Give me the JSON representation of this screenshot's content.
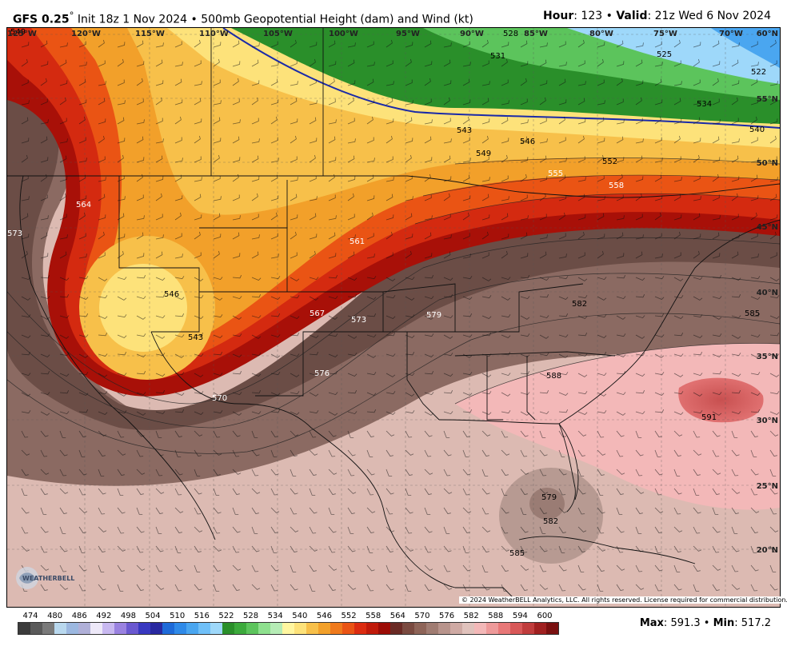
{
  "header": {
    "model": "GFS 0.25",
    "degree": "°",
    "init": "Init 18z 1 Nov 2024",
    "sep": "•",
    "product": "500mb Geopotential Height (dam) and Wind (kt)",
    "hour_label": "Hour",
    "hour_value": "123",
    "valid_label": "Valid",
    "valid_value": "21z Wed 6 Nov 2024"
  },
  "map": {
    "lon_labels": [
      "125°W",
      "120°W",
      "115°W",
      "110°W",
      "105°W",
      "100°W",
      "95°W",
      "90°W",
      "85°W",
      "80°W",
      "75°W",
      "70°W"
    ],
    "lat_labels": [
      "60°N",
      "55°N",
      "50°N",
      "45°N",
      "40°N",
      "35°N",
      "30°N",
      "25°N",
      "20°N"
    ],
    "contour_labels": [
      "549",
      "528",
      "531",
      "525",
      "534",
      "522",
      "540",
      "543",
      "546",
      "549",
      "552",
      "555",
      "558",
      "564",
      "561",
      "567",
      "546",
      "543",
      "573",
      "573",
      "576",
      "579",
      "582",
      "585",
      "588",
      "591",
      "570",
      "579",
      "582",
      "585"
    ],
    "copyright": "© 2024 WeatherBELL Analytics, LLC. All rights reserved. License required for commercial distribution.",
    "logo_text": "WEATHERBELL"
  },
  "legend": {
    "values": [
      "474",
      "480",
      "486",
      "492",
      "498",
      "504",
      "510",
      "516",
      "522",
      "528",
      "534",
      "540",
      "546",
      "552",
      "558",
      "564",
      "570",
      "576",
      "582",
      "588",
      "594",
      "600"
    ],
    "colors": [
      "#3b3b3b",
      "#5a5a5a",
      "#7a7a7a",
      "#b9d8ee",
      "#9cb8e0",
      "#b0b0d8",
      "#ede8f8",
      "#c8b8f0",
      "#9a82e0",
      "#6a58d0",
      "#3838c0",
      "#2828a0",
      "#1e6ad8",
      "#2f8ae8",
      "#4aa6f0",
      "#70c0f8",
      "#9ed8fa",
      "#2a8f2a",
      "#3caa3c",
      "#5cc45c",
      "#8ee08e",
      "#b6ecb6",
      "#fff6a0",
      "#fde27a",
      "#f7c04a",
      "#f2a02a",
      "#ef7a1c",
      "#ea5414",
      "#dc2c10",
      "#c01a0a",
      "#9c0c06",
      "#6a2a24",
      "#7a4a40",
      "#8e6458",
      "#a07c72",
      "#b8948c",
      "#cfaaa4",
      "#e0c2bc",
      "#f3b8b8",
      "#ee9a9a",
      "#e87878",
      "#d85858",
      "#c03c3c",
      "#a02020",
      "#7a1010"
    ]
  },
  "minmax": {
    "max_label": "Max",
    "max_value": "591.3",
    "min_label": "Min",
    "min_value": "517.2"
  }
}
